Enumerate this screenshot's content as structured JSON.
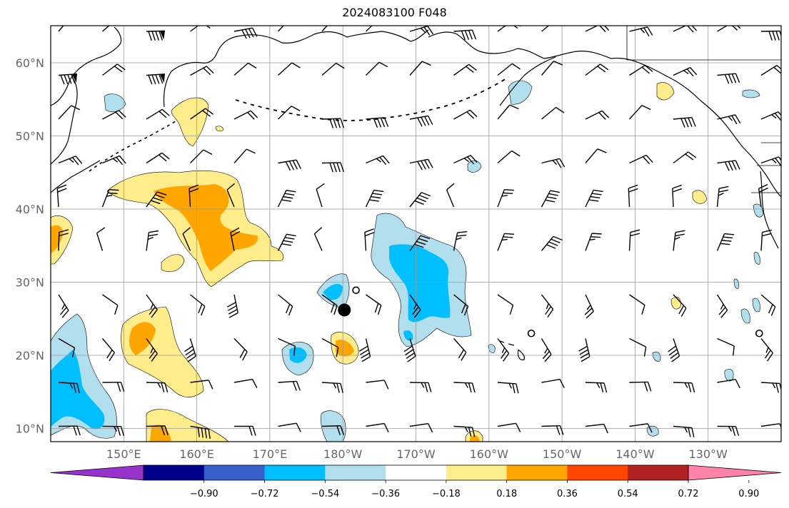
{
  "title": "2024083100 F048",
  "lat_labels": [
    "60°N",
    "50°N",
    "40°N",
    "30°N",
    "20°N",
    "10°N"
  ],
  "lon_labels": [
    "150°E",
    "160°E",
    "170°E",
    "180°W",
    "170°W",
    "160°W",
    "150°W",
    "140°W",
    "130°W"
  ],
  "colorbar": {
    "colors": [
      "#9932cc",
      "#00008b",
      "#3a5fcd",
      "#00bfff",
      "#b2dfee",
      "#ffffff",
      "#ffec8b",
      "#ffa500",
      "#ff4500",
      "#b22222",
      "#ff82ab"
    ],
    "tick_labels": [
      "−0.90",
      "−0.72",
      "−0.54",
      "−0.36",
      "−0.18",
      "0.18",
      "0.36",
      "0.54",
      "0.72",
      "0.90"
    ]
  },
  "colors": {
    "grid": "#999999",
    "coast": "#000000",
    "positive_light": "#ffec8b",
    "positive_mid": "#ffa500",
    "negative_light": "#b2dfee",
    "negative_mid": "#00bfff"
  },
  "markers": [
    {
      "name": "storm-center-marker",
      "lon": -179.8,
      "lat": 26.2,
      "kind": "filled-circle"
    },
    {
      "name": "open-circle-marker",
      "lon": -178.2,
      "lat": 28.9,
      "kind": "open-circle"
    },
    {
      "name": "open-circle-marker",
      "lon": -154.2,
      "lat": 23.0,
      "kind": "open-circle"
    },
    {
      "name": "open-circle-marker",
      "lon": -123.0,
      "lat": 23.0,
      "kind": "open-circle"
    }
  ]
}
